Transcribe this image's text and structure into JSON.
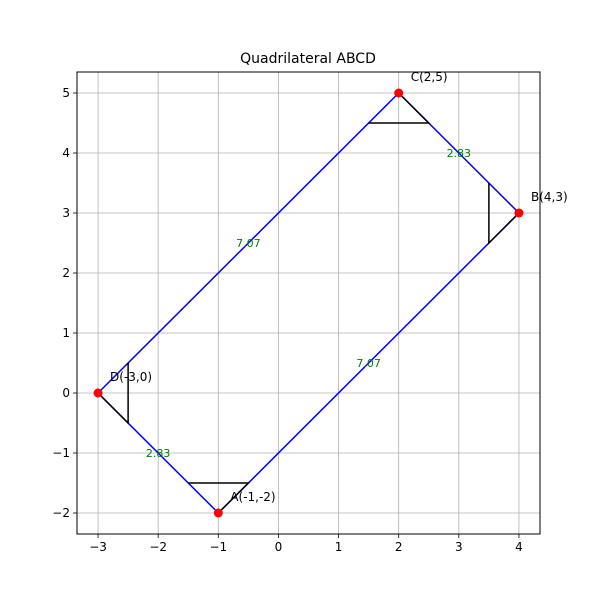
{
  "chart_data": {
    "type": "scatter",
    "title": "Quadrilateral ABCD",
    "xlabel": "",
    "ylabel": "",
    "xlim": [
      -3.35,
      4.35
    ],
    "ylim": [
      -2.35,
      5.35
    ],
    "grid": true,
    "x_ticks": [
      -3,
      -2,
      -1,
      0,
      1,
      2,
      3,
      4
    ],
    "x_tick_labels": [
      "−3",
      "−2",
      "−1",
      "0",
      "1",
      "2",
      "3",
      "4"
    ],
    "y_ticks": [
      -2,
      -1,
      0,
      1,
      2,
      3,
      4,
      5
    ],
    "y_tick_labels": [
      "−2",
      "−1",
      "0",
      "1",
      "2",
      "3",
      "4",
      "5"
    ],
    "vertices": [
      {
        "name": "A",
        "label": "A(-1,-2)",
        "x": -1,
        "y": -2
      },
      {
        "name": "B",
        "label": "B(4,3)",
        "x": 4,
        "y": 3
      },
      {
        "name": "C",
        "label": "C(2,5)",
        "x": 2,
        "y": 5
      },
      {
        "name": "D",
        "label": "D(-3,0)",
        "x": -3,
        "y": 0
      }
    ],
    "sides": [
      {
        "from": "A",
        "to": "B",
        "length_label": "7.07"
      },
      {
        "from": "B",
        "to": "C",
        "length_label": "2.83"
      },
      {
        "from": "C",
        "to": "D",
        "length_label": "7.07"
      },
      {
        "from": "D",
        "to": "A",
        "length_label": "2.83"
      }
    ],
    "right_angle_marks": [
      {
        "vertex": "A",
        "points": [
          [
            -1.5,
            -1.5
          ],
          [
            -0.5,
            -1.5
          ],
          [
            -1,
            -2
          ]
        ]
      },
      {
        "vertex": "B",
        "points": [
          [
            3.5,
            3.5
          ],
          [
            3.5,
            2.5
          ],
          [
            4,
            3
          ]
        ]
      },
      {
        "vertex": "C",
        "points": [
          [
            1.5,
            4.5
          ],
          [
            2.5,
            4.5
          ],
          [
            2,
            5
          ]
        ]
      },
      {
        "vertex": "D",
        "points": [
          [
            -2.5,
            0.5
          ],
          [
            -2.5,
            -0.5
          ],
          [
            -3,
            0
          ]
        ]
      }
    ],
    "side_label_positions": [
      {
        "text": "7.07",
        "x": 1.5,
        "y": 0.5
      },
      {
        "text": "2.83",
        "x": 3.0,
        "y": 4.0
      },
      {
        "text": "7.07",
        "x": -0.5,
        "y": 2.5
      },
      {
        "text": "2.83",
        "x": -2.0,
        "y": -1.0
      }
    ],
    "colors": {
      "polygon": "#0000ff",
      "vertex": "#ff0000",
      "marks": "#000000",
      "side_labels": "#008000",
      "grid": "#b0b0b0"
    }
  }
}
